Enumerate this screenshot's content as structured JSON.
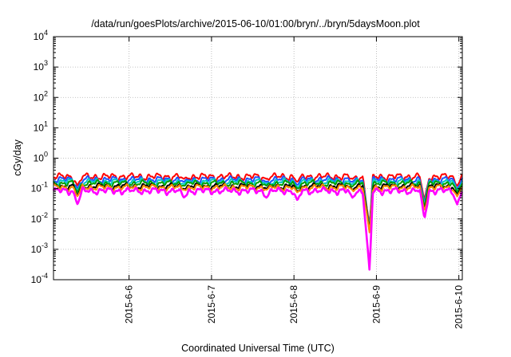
{
  "chart_data": {
    "type": "line",
    "title": "/data/run/goesPlots/archive/2015-06-10/01:00/bryn/../bryn/5daysMoon.plot",
    "xlabel": "Coordinated Universal Time (UTC)",
    "ylabel": "cGy/day",
    "yscale": "log",
    "ylim": [
      0.0001,
      10000
    ],
    "y_ticks": [
      {
        "base": "10",
        "exp": "-4"
      },
      {
        "base": "10",
        "exp": "-3"
      },
      {
        "base": "10",
        "exp": "-2"
      },
      {
        "base": "10",
        "exp": "-1"
      },
      {
        "base": "10",
        "exp": "0"
      },
      {
        "base": "10",
        "exp": "1"
      },
      {
        "base": "10",
        "exp": "2"
      },
      {
        "base": "10",
        "exp": "3"
      },
      {
        "base": "10",
        "exp": "4"
      }
    ],
    "xlim": [
      "2015-06-05 02:00",
      "2015-06-10 01:00"
    ],
    "x_ticks": [
      "2015-6-6",
      "2015-6-7",
      "2015-6-8",
      "2015-6-9",
      "2015-6-10"
    ],
    "grid": true,
    "series": [
      {
        "color": "#ff00ff",
        "base": 0.085,
        "amp": 0.012,
        "phase": 0.0,
        "values_dip": [
          0.03,
          0.03,
          0.028
        ]
      },
      {
        "color": "#ff8c00",
        "base": 0.11,
        "amp": 0.015,
        "phase": 0.6
      },
      {
        "color": "#000000",
        "base": 0.12,
        "amp": 0.015,
        "phase": 1.1
      },
      {
        "color": "#00a000",
        "base": 0.15,
        "amp": 0.02,
        "phase": 1.7
      },
      {
        "color": "#00c8c8",
        "base": 0.17,
        "amp": 0.025,
        "phase": 2.3
      },
      {
        "color": "#1e50ff",
        "base": 0.2,
        "amp": 0.03,
        "phase": 2.9
      },
      {
        "color": "#ff0000",
        "base": 0.25,
        "amp": 0.04,
        "phase": 3.5
      }
    ],
    "events": {
      "dips": [
        {
          "t": "2015-06-05 09:00",
          "min": 0.03
        },
        {
          "t": "2015-06-06 16:00",
          "min": 0.05
        },
        {
          "t": "2015-06-07 16:00",
          "min": 0.05
        },
        {
          "t": "2015-06-08 01:00",
          "min": 0.04
        },
        {
          "t": "2015-06-08 17:00",
          "min": 0.05
        },
        {
          "t": "2015-06-09 14:00",
          "min": 0.01
        },
        {
          "t": "2015-06-09 23:30",
          "min": 0.03
        }
      ],
      "deep_drop": {
        "start": "2015-06-08 20:00",
        "min_time": "2015-06-08 22:00",
        "end": "2015-06-08 23:00",
        "min_magenta": 0.0002,
        "min_others": 0.003
      }
    }
  }
}
